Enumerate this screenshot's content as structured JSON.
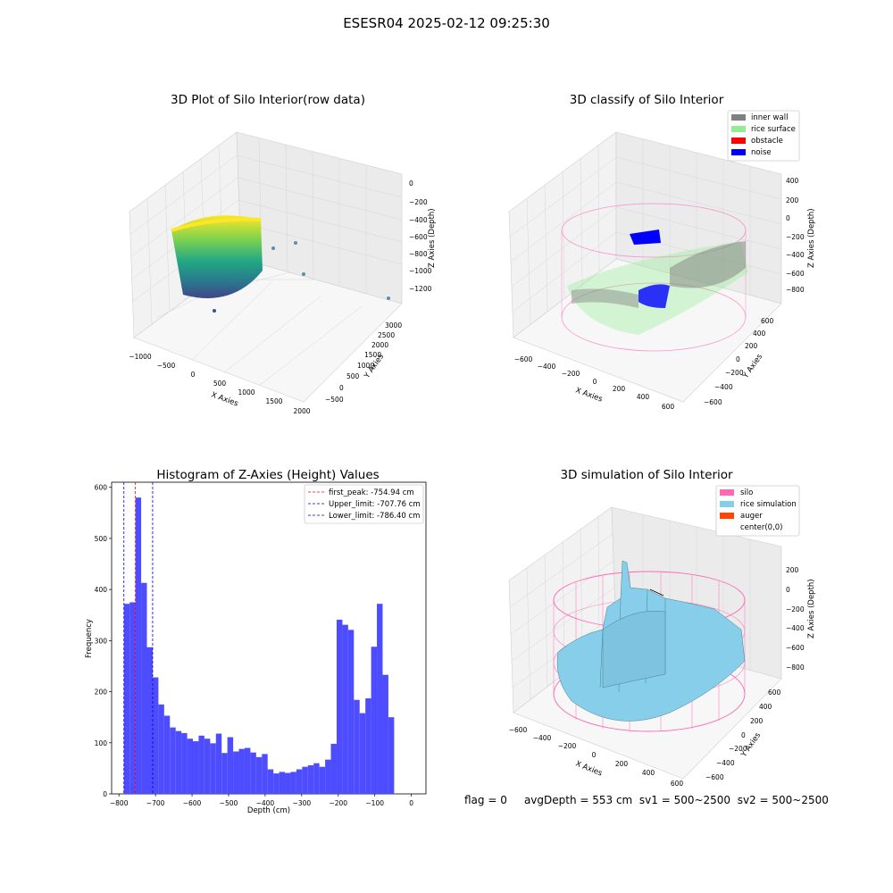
{
  "suptitle": "ESESR04 2025-02-12 09:25:30",
  "footer": {
    "flag": "flag = 0",
    "avg_depth": "avgDepth = 553 cm",
    "sv1": "sv1 = 500~2500",
    "sv2": "sv2 = 500~2500"
  },
  "colors": {
    "histogram_bar": "#4d4dff",
    "first_peak_line": "#ff0000",
    "limit_lines": "#0000cc",
    "inner_wall": "#808080",
    "rice_surface": "#90ee90",
    "obstacle": "#ff0000",
    "noise": "#0000ff",
    "silo": "#ff69b4",
    "rice_simulation": "#87ceeb",
    "auger": "#ff4500"
  },
  "plot1": {
    "title": "3D Plot of Silo Interior(row data)",
    "type": "scatter3d",
    "colormap": "viridis",
    "xlabel": "X Axies",
    "ylabel": "Y Axies",
    "zlabel": "Z Axies (Depth)",
    "x_ticks": [
      "−1000",
      "−500",
      "0",
      "500",
      "1000",
      "1500",
      "2000"
    ],
    "y_ticks": [
      "−500",
      "0",
      "500",
      "1000",
      "1500",
      "2000",
      "2500",
      "3000"
    ],
    "z_ticks": [
      "0",
      "−200",
      "−400",
      "−600",
      "−800",
      "−1000",
      "−1200"
    ]
  },
  "plot2": {
    "title": "3D classify of Silo Interior",
    "type": "scatter3d",
    "xlabel": "X Axies",
    "ylabel": "Y Axies",
    "zlabel": "Z Axies (Depth)",
    "x_ticks": [
      "−600",
      "−400",
      "−200",
      "0",
      "200",
      "400",
      "600"
    ],
    "y_ticks": [
      "−600",
      "−400",
      "−200",
      "0",
      "200",
      "400",
      "600"
    ],
    "z_ticks": [
      "400",
      "200",
      "0",
      "−200",
      "−400",
      "−600",
      "−800"
    ],
    "legend": [
      "inner wall",
      "rice surface",
      "obstacle",
      "noise"
    ]
  },
  "plot3": {
    "title": "Histogram of Z-Axies (Height) Values",
    "xlabel": "Depth (cm)",
    "ylabel": "Frequency",
    "x_ticks": [
      "−800",
      "−700",
      "−600",
      "−500",
      "−400",
      "−300",
      "−200",
      "−100",
      "0"
    ],
    "y_ticks": [
      "0",
      "100",
      "200",
      "300",
      "400",
      "500",
      "600"
    ],
    "legend": [
      "first_peak: -754.94 cm",
      "Upper_limit: -707.76 cm",
      "Lower_limit: -786.40 cm"
    ]
  },
  "plot4": {
    "title": "3D simulation of Silo Interior",
    "type": "surface3d",
    "xlabel": "X Axies",
    "ylabel": "Y Axies",
    "zlabel": "Z Axies (Depth)",
    "x_ticks": [
      "−600",
      "−400",
      "−200",
      "0",
      "200",
      "400",
      "600"
    ],
    "y_ticks": [
      "−600",
      "−400",
      "−200",
      "0",
      "200",
      "400",
      "600"
    ],
    "z_ticks": [
      "200",
      "0",
      "−200",
      "−400",
      "−600",
      "−800"
    ],
    "legend": [
      "silo",
      "rice simulation",
      "auger",
      "center(0,0)"
    ]
  },
  "chart_data": [
    {
      "type": "heatmap",
      "title": "3D Plot of Silo Interior(row data)",
      "xlabel": "X Axies",
      "ylabel": "Y Axies",
      "zlabel": "Z Axies (Depth)",
      "xlim": [
        -1100,
        2100
      ],
      "ylim": [
        -600,
        3200
      ],
      "zlim": [
        -1300,
        50
      ]
    },
    {
      "type": "scatter",
      "title": "3D classify of Silo Interior",
      "xlabel": "X Axies",
      "ylabel": "Y Axies",
      "zlabel": "Z Axies (Depth)",
      "xlim": [
        -700,
        700
      ],
      "ylim": [
        -700,
        700
      ],
      "zlim": [
        -900,
        420
      ],
      "series": [
        {
          "name": "inner wall"
        },
        {
          "name": "rice surface"
        },
        {
          "name": "obstacle"
        },
        {
          "name": "noise"
        }
      ]
    },
    {
      "type": "bar",
      "title": "Histogram of Z-Axies (Height) Values",
      "xlabel": "Depth (cm)",
      "ylabel": "Frequency",
      "xlim": [
        -820,
        40
      ],
      "ylim": [
        0,
        610
      ],
      "bin_start": -786.4,
      "bin_width": 15.73,
      "values": [
        372,
        375,
        580,
        413,
        287,
        228,
        175,
        153,
        130,
        123,
        119,
        108,
        103,
        114,
        108,
        99,
        118,
        80,
        111,
        83,
        88,
        90,
        81,
        72,
        78,
        48,
        40,
        43,
        41,
        43,
        48,
        53,
        56,
        60,
        53,
        67,
        98,
        341,
        331,
        321,
        184,
        158,
        187,
        288,
        372,
        233,
        150
      ],
      "vlines": [
        {
          "name": "first_peak: -754.94 cm",
          "x": -754.94,
          "color": "#ff0000"
        },
        {
          "name": "Upper_limit: -707.76 cm",
          "x": -707.76,
          "color": "#0000cc"
        },
        {
          "name": "Lower_limit: -786.40 cm",
          "x": -786.4,
          "color": "#0000cc"
        }
      ]
    },
    {
      "type": "area",
      "title": "3D simulation of Silo Interior",
      "xlabel": "X Axies",
      "ylabel": "Y Axies",
      "zlabel": "Z Axies (Depth)",
      "xlim": [
        -700,
        700
      ],
      "ylim": [
        -700,
        700
      ],
      "zlim": [
        -900,
        320
      ],
      "series": [
        {
          "name": "silo"
        },
        {
          "name": "rice simulation"
        },
        {
          "name": "auger"
        },
        {
          "name": "center(0,0)"
        }
      ]
    }
  ]
}
